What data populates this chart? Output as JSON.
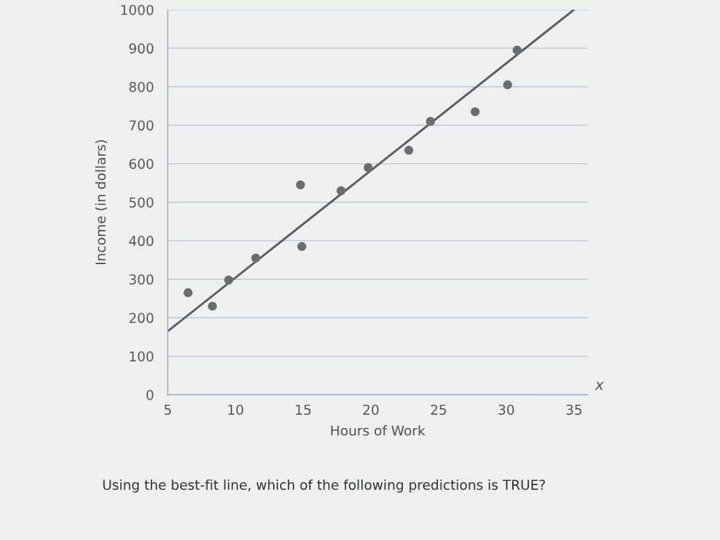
{
  "chart_data": {
    "type": "scatter",
    "xlabel": "Hours of Work",
    "ylabel": "Income (in dollars)",
    "series": [
      {
        "color": "#696c70",
        "marker": "circle",
        "x": [
          6.5,
          8.3,
          9.5,
          11.5,
          14.8,
          14.9,
          17.8,
          19.8,
          22.8,
          24.4,
          27.7,
          30.1,
          30.8
        ],
        "values": [
          265,
          230,
          298,
          355,
          545,
          385,
          530,
          590,
          635,
          710,
          735,
          805,
          895
        ]
      },
      {
        "type": "line",
        "color": "#5a5d61",
        "line_style": "solid",
        "x": [
          5,
          35
        ],
        "values": [
          165,
          1000
        ]
      }
    ],
    "xlim": [
      5,
      36
    ],
    "ylim": [
      0,
      1000
    ],
    "xticks": [
      5,
      10,
      15,
      20,
      25,
      30,
      35
    ],
    "yticks": [
      0,
      100,
      200,
      300,
      400,
      500,
      600,
      700,
      800,
      900,
      1000
    ],
    "grid": "y",
    "annotations": [
      "x",
      "Using the best-fit line, which of the following predictions is TRUE?"
    ]
  }
}
